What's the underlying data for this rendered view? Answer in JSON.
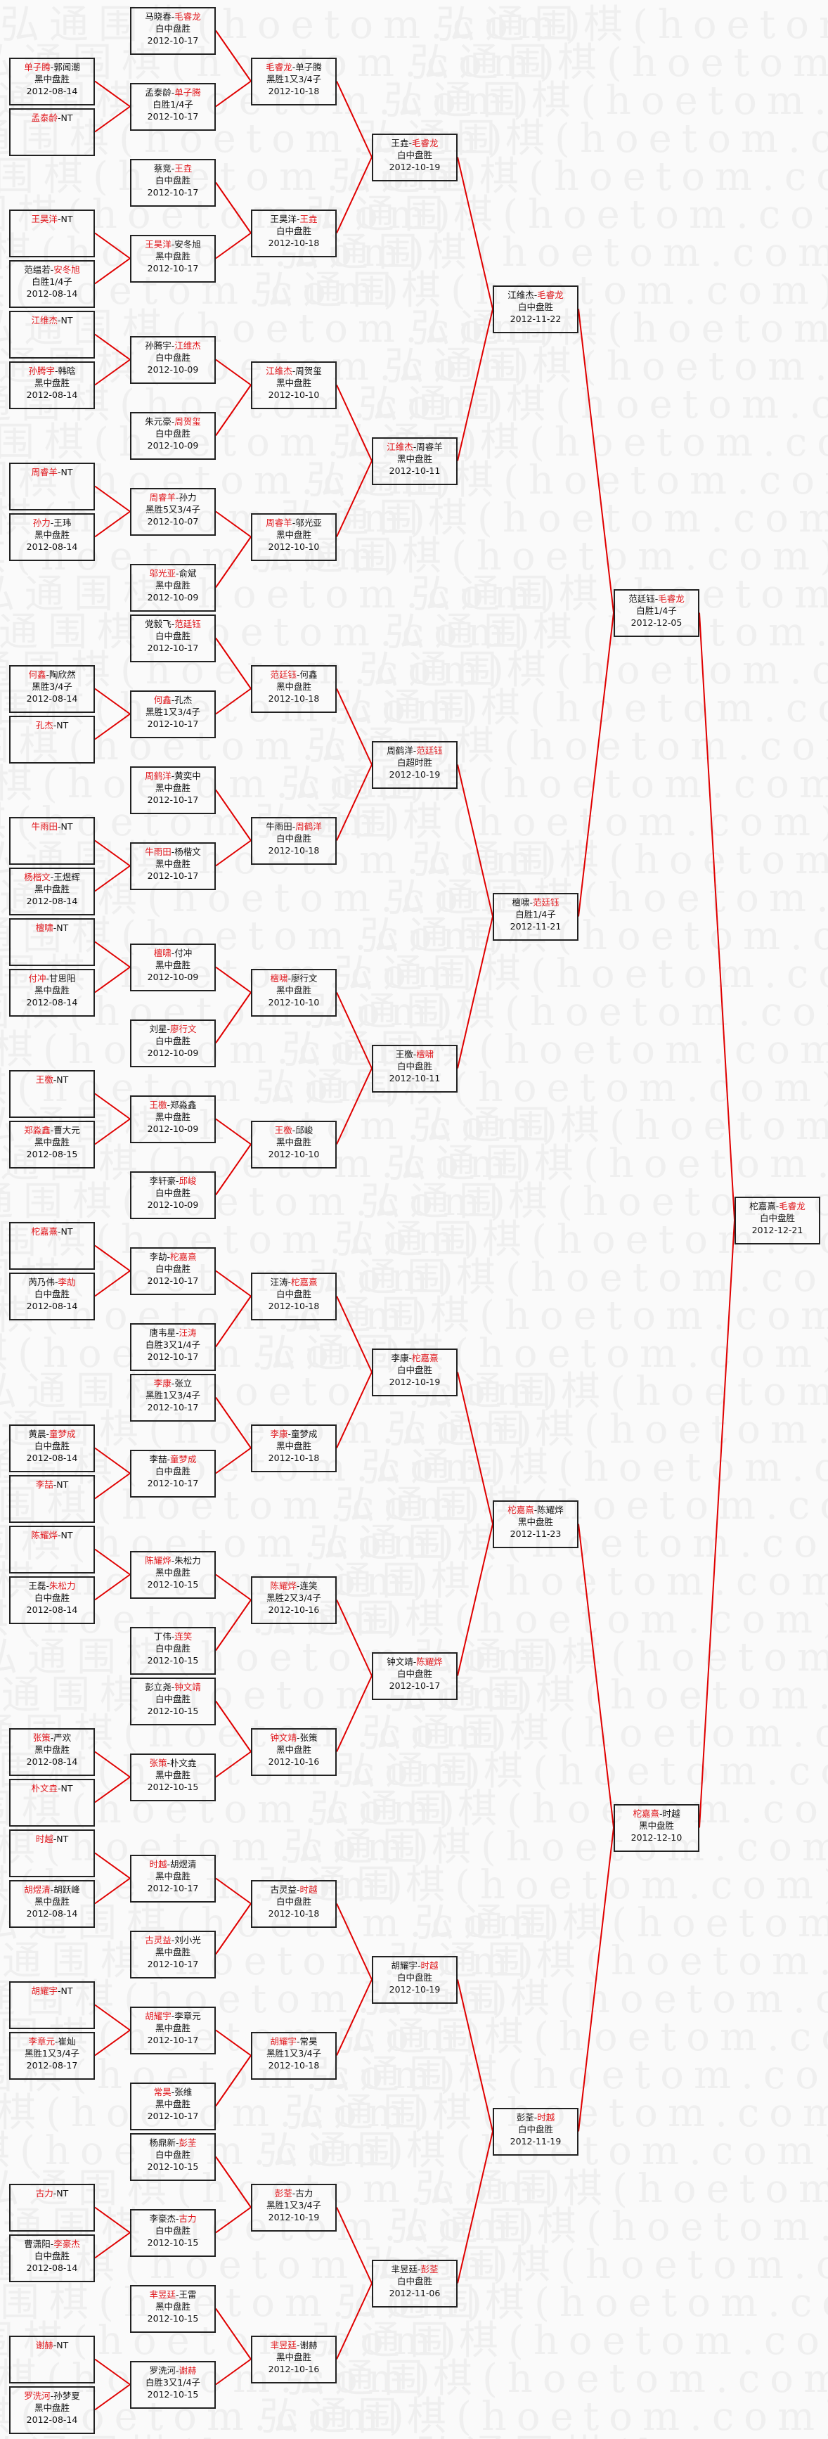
{
  "watermark": "弘通围棋(hoetom.com)",
  "colors": {
    "winner": "#e0161b",
    "connector": "#e00000",
    "border": "#222222"
  },
  "rounds": [
    {
      "matches": [
        {
          "p1": "单子腾",
          "p2": "郭闻潮",
          "winner": 1,
          "result": "黑中盘胜",
          "date": "2012-08-14"
        },
        {
          "p1": "孟泰龄",
          "p2": "NT",
          "winner": 1,
          "result": "",
          "date": ""
        },
        {
          "p1": "王昊洋",
          "p2": "NT",
          "winner": 1,
          "result": "",
          "date": ""
        },
        {
          "p1": "范缊若",
          "p2": "安冬旭",
          "winner": 2,
          "result": "白胜1/4子",
          "date": "2012-08-14"
        },
        {
          "p1": "江维杰",
          "p2": "NT",
          "winner": 1,
          "result": "",
          "date": ""
        },
        {
          "p1": "孙腾宇",
          "p2": "韩晗",
          "winner": 1,
          "result": "黑中盘胜",
          "date": "2012-08-14"
        },
        {
          "p1": "周睿羊",
          "p2": "NT",
          "winner": 1,
          "result": "",
          "date": ""
        },
        {
          "p1": "孙力",
          "p2": "王玮",
          "winner": 1,
          "result": "黑中盘胜",
          "date": "2012-08-14"
        },
        {
          "p1": "何鑫",
          "p2": "陶欣然",
          "winner": 1,
          "result": "黑胜3/4子",
          "date": "2012-08-14"
        },
        {
          "p1": "孔杰",
          "p2": "NT",
          "winner": 1,
          "result": "",
          "date": ""
        },
        {
          "p1": "牛雨田",
          "p2": "NT",
          "winner": 1,
          "result": "",
          "date": ""
        },
        {
          "p1": "杨楷文",
          "p2": "王煜辉",
          "winner": 1,
          "result": "黑中盘胜",
          "date": "2012-08-14"
        },
        {
          "p1": "檀啸",
          "p2": "NT",
          "winner": 1,
          "result": "",
          "date": ""
        },
        {
          "p1": "付冲",
          "p2": "甘思阳",
          "winner": 1,
          "result": "黑中盘胜",
          "date": "2012-08-14"
        },
        {
          "p1": "王檄",
          "p2": "NT",
          "winner": 1,
          "result": "",
          "date": ""
        },
        {
          "p1": "郑淼鑫",
          "p2": "曹大元",
          "winner": 1,
          "result": "黑中盘胜",
          "date": "2012-08-15"
        },
        {
          "p1": "柁嘉熹",
          "p2": "NT",
          "winner": 1,
          "result": "",
          "date": ""
        },
        {
          "p1": "芮乃伟",
          "p2": "李劼",
          "winner": 2,
          "result": "白中盘胜",
          "date": "2012-08-14"
        },
        {
          "p1": "黄晨",
          "p2": "童梦成",
          "winner": 2,
          "result": "白中盘胜",
          "date": "2012-08-14"
        },
        {
          "p1": "李喆",
          "p2": "NT",
          "winner": 1,
          "result": "",
          "date": ""
        },
        {
          "p1": "陈耀烨",
          "p2": "NT",
          "winner": 1,
          "result": "",
          "date": ""
        },
        {
          "p1": "王磊",
          "p2": "朱松力",
          "winner": 2,
          "result": "白中盘胜",
          "date": "2012-08-14"
        },
        {
          "p1": "张策",
          "p2": "严欢",
          "winner": 1,
          "result": "黑中盘胜",
          "date": "2012-08-14"
        },
        {
          "p1": "朴文垚",
          "p2": "NT",
          "winner": 1,
          "result": "",
          "date": ""
        },
        {
          "p1": "时越",
          "p2": "NT",
          "winner": 1,
          "result": "",
          "date": ""
        },
        {
          "p1": "胡煜清",
          "p2": "胡跃峰",
          "winner": 1,
          "result": "黑中盘胜",
          "date": "2012-08-14"
        },
        {
          "p1": "胡耀宇",
          "p2": "NT",
          "winner": 1,
          "result": "",
          "date": ""
        },
        {
          "p1": "李章元",
          "p2": "崔灿",
          "winner": 1,
          "result": "黑胜1又3/4子",
          "date": "2012-08-17"
        },
        {
          "p1": "古力",
          "p2": "NT",
          "winner": 1,
          "result": "",
          "date": ""
        },
        {
          "p1": "曹潇阳",
          "p2": "李豪杰",
          "winner": 2,
          "result": "白中盘胜",
          "date": "2012-08-14"
        },
        {
          "p1": "谢赫",
          "p2": "NT",
          "winner": 1,
          "result": "",
          "date": ""
        },
        {
          "p1": "罗洗河",
          "p2": "孙梦夏",
          "winner": 1,
          "result": "黑中盘胜",
          "date": "2012-08-14"
        }
      ]
    },
    {
      "matches": [
        {
          "p1": "马晓春",
          "p2": "毛睿龙",
          "winner": 2,
          "result": "白中盘胜",
          "date": "2012-10-17"
        },
        {
          "p1": "孟泰龄",
          "p2": "单子腾",
          "winner": 2,
          "result": "白胜1/4子",
          "date": "2012-10-17"
        },
        {
          "p1": "蔡竞",
          "p2": "王垚",
          "winner": 2,
          "result": "白中盘胜",
          "date": "2012-10-17"
        },
        {
          "p1": "王昊洋",
          "p2": "安冬旭",
          "winner": 1,
          "result": "黑中盘胜",
          "date": "2012-10-17"
        },
        {
          "p1": "孙腾宇",
          "p2": "江维杰",
          "winner": 2,
          "result": "白中盘胜",
          "date": "2012-10-09"
        },
        {
          "p1": "朱元豪",
          "p2": "周贺玺",
          "winner": 2,
          "result": "白中盘胜",
          "date": "2012-10-09"
        },
        {
          "p1": "周睿羊",
          "p2": "孙力",
          "winner": 1,
          "result": "黑胜5又3/4子",
          "date": "2012-10-07"
        },
        {
          "p1": "邬光亚",
          "p2": "俞斌",
          "winner": 1,
          "result": "黑中盘胜",
          "date": "2012-10-09"
        },
        {
          "p1": "党毅飞",
          "p2": "范廷钰",
          "winner": 2,
          "result": "白中盘胜",
          "date": "2012-10-17"
        },
        {
          "p1": "何鑫",
          "p2": "孔杰",
          "winner": 1,
          "result": "黑胜1又3/4子",
          "date": "2012-10-17"
        },
        {
          "p1": "周鹤洋",
          "p2": "黄奕中",
          "winner": 1,
          "result": "黑中盘胜",
          "date": "2012-10-17"
        },
        {
          "p1": "牛雨田",
          "p2": "杨楷文",
          "winner": 1,
          "result": "黑中盘胜",
          "date": "2012-10-17"
        },
        {
          "p1": "檀啸",
          "p2": "付冲",
          "winner": 1,
          "result": "黑中盘胜",
          "date": "2012-10-09"
        },
        {
          "p1": "刘星",
          "p2": "廖行文",
          "winner": 2,
          "result": "白中盘胜",
          "date": "2012-10-09"
        },
        {
          "p1": "王檄",
          "p2": "郑淼鑫",
          "winner": 1,
          "result": "黑中盘胜",
          "date": "2012-10-09"
        },
        {
          "p1": "李轩豪",
          "p2": "邱峻",
          "winner": 2,
          "result": "白中盘胜",
          "date": "2012-10-09"
        },
        {
          "p1": "李劼",
          "p2": "柁嘉熹",
          "winner": 2,
          "result": "白中盘胜",
          "date": "2012-10-17"
        },
        {
          "p1": "唐韦星",
          "p2": "汪涛",
          "winner": 2,
          "result": "白胜3又1/4子",
          "date": "2012-10-17"
        },
        {
          "p1": "李康",
          "p2": "张立",
          "winner": 1,
          "result": "黑胜1又3/4子",
          "date": "2012-10-17"
        },
        {
          "p1": "李喆",
          "p2": "童梦成",
          "winner": 2,
          "result": "白中盘胜",
          "date": "2012-10-17"
        },
        {
          "p1": "陈耀烨",
          "p2": "朱松力",
          "winner": 1,
          "result": "黑中盘胜",
          "date": "2012-10-15"
        },
        {
          "p1": "丁伟",
          "p2": "连笑",
          "winner": 2,
          "result": "白中盘胜",
          "date": "2012-10-15"
        },
        {
          "p1": "彭立尧",
          "p2": "钟文靖",
          "winner": 2,
          "result": "白中盘胜",
          "date": "2012-10-15"
        },
        {
          "p1": "张策",
          "p2": "朴文垚",
          "winner": 1,
          "result": "黑中盘胜",
          "date": "2012-10-15"
        },
        {
          "p1": "时越",
          "p2": "胡煜清",
          "winner": 1,
          "result": "黑中盘胜",
          "date": "2012-10-17"
        },
        {
          "p1": "古灵益",
          "p2": "刘小光",
          "winner": 1,
          "result": "黑中盘胜",
          "date": "2012-10-17"
        },
        {
          "p1": "胡耀宇",
          "p2": "李章元",
          "winner": 1,
          "result": "黑中盘胜",
          "date": "2012-10-17"
        },
        {
          "p1": "常昊",
          "p2": "张维",
          "winner": 1,
          "result": "黑中盘胜",
          "date": "2012-10-17"
        },
        {
          "p1": "杨鼎新",
          "p2": "彭荃",
          "winner": 2,
          "result": "白中盘胜",
          "date": "2012-10-15"
        },
        {
          "p1": "李豪杰",
          "p2": "古力",
          "winner": 2,
          "result": "白中盘胜",
          "date": "2012-10-15"
        },
        {
          "p1": "芈昱廷",
          "p2": "王雷",
          "winner": 1,
          "result": "黑中盘胜",
          "date": "2012-10-15"
        },
        {
          "p1": "罗洗河",
          "p2": "谢赫",
          "winner": 2,
          "result": "白胜3又1/4子",
          "date": "2012-10-15"
        }
      ]
    },
    {
      "matches": [
        {
          "p1": "毛睿龙",
          "p2": "单子腾",
          "winner": 1,
          "result": "黑胜1又3/4子",
          "date": "2012-10-18"
        },
        {
          "p1": "王昊洋",
          "p2": "王垚",
          "winner": 2,
          "result": "白中盘胜",
          "date": "2012-10-18"
        },
        {
          "p1": "江维杰",
          "p2": "周贺玺",
          "winner": 1,
          "result": "黑中盘胜",
          "date": "2012-10-10"
        },
        {
          "p1": "周睿羊",
          "p2": "邬光亚",
          "winner": 1,
          "result": "黑中盘胜",
          "date": "2012-10-10"
        },
        {
          "p1": "范廷钰",
          "p2": "何鑫",
          "winner": 1,
          "result": "黑中盘胜",
          "date": "2012-10-18"
        },
        {
          "p1": "牛雨田",
          "p2": "周鹤洋",
          "winner": 2,
          "result": "白中盘胜",
          "date": "2012-10-18"
        },
        {
          "p1": "檀啸",
          "p2": "廖行文",
          "winner": 1,
          "result": "黑中盘胜",
          "date": "2012-10-10"
        },
        {
          "p1": "王檄",
          "p2": "邱峻",
          "winner": 1,
          "result": "黑中盘胜",
          "date": "2012-10-10"
        },
        {
          "p1": "汪涛",
          "p2": "柁嘉熹",
          "winner": 2,
          "result": "白中盘胜",
          "date": "2012-10-18"
        },
        {
          "p1": "李康",
          "p2": "童梦成",
          "winner": 1,
          "result": "黑中盘胜",
          "date": "2012-10-18"
        },
        {
          "p1": "陈耀烨",
          "p2": "连笑",
          "winner": 1,
          "result": "黑胜2又3/4子",
          "date": "2012-10-16"
        },
        {
          "p1": "钟文靖",
          "p2": "张策",
          "winner": 1,
          "result": "黑中盘胜",
          "date": "2012-10-16"
        },
        {
          "p1": "古灵益",
          "p2": "时越",
          "winner": 2,
          "result": "白中盘胜",
          "date": "2012-10-18"
        },
        {
          "p1": "胡耀宇",
          "p2": "常昊",
          "winner": 1,
          "result": "黑胜1又3/4子",
          "date": "2012-10-18"
        },
        {
          "p1": "彭荃",
          "p2": "古力",
          "winner": 1,
          "result": "黑胜1又3/4子",
          "date": "2012-10-19"
        },
        {
          "p1": "芈昱廷",
          "p2": "谢赫",
          "winner": 1,
          "result": "黑中盘胜",
          "date": "2012-10-16"
        }
      ]
    },
    {
      "matches": [
        {
          "p1": "王垚",
          "p2": "毛睿龙",
          "winner": 2,
          "result": "白中盘胜",
          "date": "2012-10-19"
        },
        {
          "p1": "江维杰",
          "p2": "周睿羊",
          "winner": 1,
          "result": "黑中盘胜",
          "date": "2012-10-11"
        },
        {
          "p1": "周鹤洋",
          "p2": "范廷钰",
          "winner": 2,
          "result": "白超时胜",
          "date": "2012-10-19"
        },
        {
          "p1": "王檄",
          "p2": "檀啸",
          "winner": 2,
          "result": "白中盘胜",
          "date": "2012-10-11"
        },
        {
          "p1": "李康",
          "p2": "柁嘉熹",
          "winner": 2,
          "result": "白中盘胜",
          "date": "2012-10-19"
        },
        {
          "p1": "钟文靖",
          "p2": "陈耀烨",
          "winner": 2,
          "result": "白中盘胜",
          "date": "2012-10-17"
        },
        {
          "p1": "胡耀宇",
          "p2": "时越",
          "winner": 2,
          "result": "白中盘胜",
          "date": "2012-10-19"
        },
        {
          "p1": "芈昱廷",
          "p2": "彭荃",
          "winner": 2,
          "result": "白中盘胜",
          "date": "2012-11-06"
        }
      ]
    },
    {
      "matches": [
        {
          "p1": "江维杰",
          "p2": "毛睿龙",
          "winner": 2,
          "result": "白中盘胜",
          "date": "2012-11-22"
        },
        {
          "p1": "檀啸",
          "p2": "范廷钰",
          "winner": 2,
          "result": "白胜1/4子",
          "date": "2012-11-21"
        },
        {
          "p1": "柁嘉熹",
          "p2": "陈耀烨",
          "winner": 1,
          "result": "黑中盘胜",
          "date": "2012-11-23"
        },
        {
          "p1": "彭荃",
          "p2": "时越",
          "winner": 2,
          "result": "白中盘胜",
          "date": "2012-11-19"
        }
      ]
    },
    {
      "matches": [
        {
          "p1": "范廷钰",
          "p2": "毛睿龙",
          "winner": 2,
          "result": "白胜1/4子",
          "date": "2012-12-05"
        },
        {
          "p1": "柁嘉熹",
          "p2": "时越",
          "winner": 1,
          "result": "黑中盘胜",
          "date": "2012-12-10"
        }
      ]
    },
    {
      "matches": [
        {
          "p1": "柁嘉熹",
          "p2": "毛睿龙",
          "winner": 2,
          "result": "白中盘胜",
          "date": "2012-12-21"
        }
      ]
    }
  ]
}
